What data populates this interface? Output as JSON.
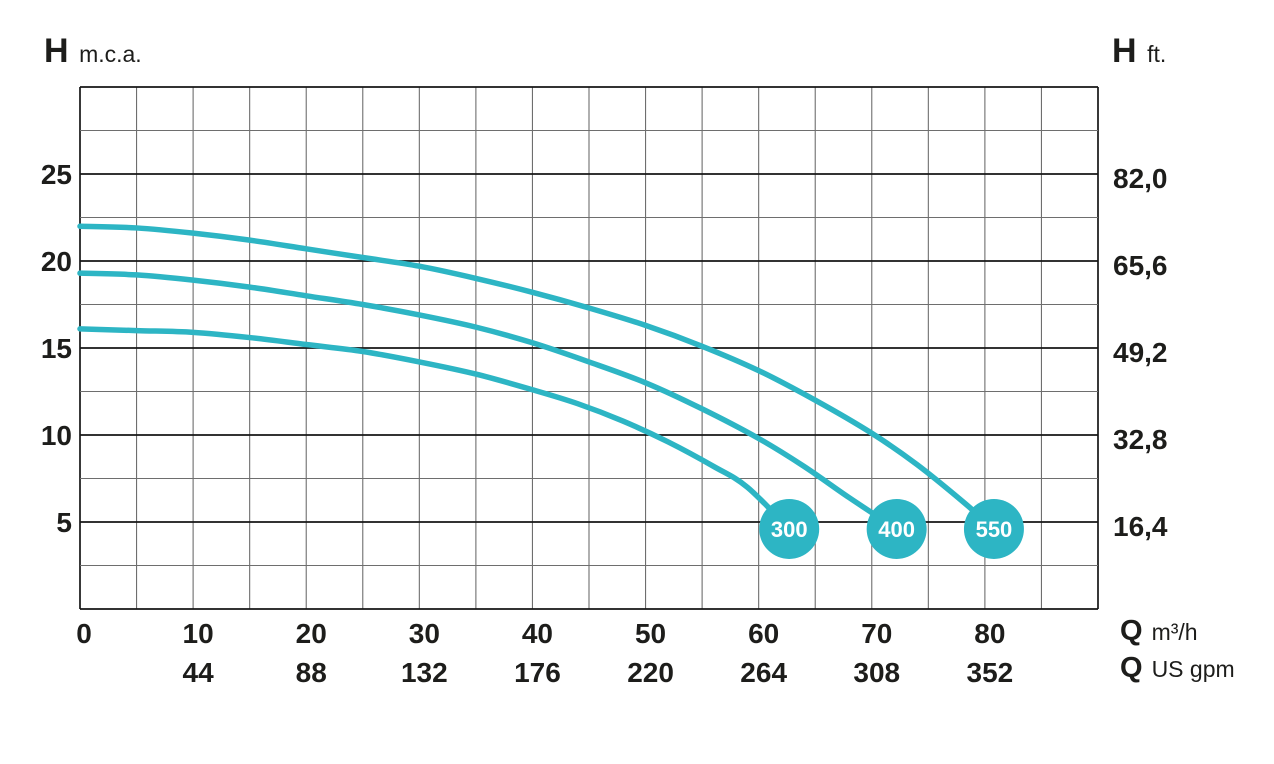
{
  "header_left": {
    "symbol": "H",
    "unit": "m.c.a."
  },
  "header_right": {
    "symbol": "H",
    "unit": "ft."
  },
  "flow_unit_primary": {
    "symbol": "Q",
    "unit": "m³/h"
  },
  "flow_unit_secondary": {
    "symbol": "Q",
    "unit": "US gpm"
  },
  "chart_data": {
    "type": "line",
    "title": "",
    "x_axis": {
      "unit": "m³/h",
      "min": 0,
      "max": 90,
      "grid_step": 5,
      "ticks": [
        0,
        10,
        20,
        30,
        40,
        50,
        60,
        70,
        80
      ]
    },
    "x_axis_secondary": {
      "unit": "US gpm",
      "ticks": [
        "44",
        "88",
        "132",
        "176",
        "220",
        "264",
        "308",
        "352"
      ],
      "tick_positions": [
        10,
        20,
        30,
        40,
        50,
        60,
        70,
        80
      ]
    },
    "y_axis": {
      "unit": "m.c.a.",
      "min": 0,
      "max": 30,
      "grid_step": 2.5,
      "ticks": [
        5,
        10,
        15,
        20,
        25
      ],
      "major_step": 5
    },
    "y_axis_secondary": {
      "unit": "ft.",
      "ticks": [
        "16,4",
        "32,8",
        "49,2",
        "65,6",
        "82,0"
      ],
      "tick_positions": [
        5,
        10,
        15,
        20,
        25
      ]
    },
    "grid": true,
    "legend_position": "on-curve-markers",
    "series": [
      {
        "name": "300",
        "points": [
          [
            0,
            16.1
          ],
          [
            5,
            16.0
          ],
          [
            10,
            15.9
          ],
          [
            15,
            15.6
          ],
          [
            20,
            15.2
          ],
          [
            25,
            14.8
          ],
          [
            30,
            14.2
          ],
          [
            35,
            13.5
          ],
          [
            40,
            12.6
          ],
          [
            44,
            11.8
          ],
          [
            48,
            10.8
          ],
          [
            52,
            9.6
          ],
          [
            56,
            8.2
          ],
          [
            59,
            7.0
          ],
          [
            62.7,
            4.6
          ]
        ],
        "marker": {
          "label": "300",
          "q": 62.7,
          "h": 4.6
        }
      },
      {
        "name": "400",
        "points": [
          [
            0,
            19.3
          ],
          [
            5,
            19.2
          ],
          [
            10,
            18.9
          ],
          [
            15,
            18.5
          ],
          [
            20,
            18.0
          ],
          [
            25,
            17.5
          ],
          [
            30,
            16.9
          ],
          [
            35,
            16.2
          ],
          [
            40,
            15.3
          ],
          [
            45,
            14.2
          ],
          [
            50,
            13.0
          ],
          [
            55,
            11.5
          ],
          [
            60,
            9.8
          ],
          [
            64,
            8.2
          ],
          [
            68,
            6.4
          ],
          [
            72.2,
            4.6
          ]
        ],
        "marker": {
          "label": "400",
          "q": 72.2,
          "h": 4.6
        }
      },
      {
        "name": "550",
        "points": [
          [
            0,
            22.0
          ],
          [
            5,
            21.9
          ],
          [
            10,
            21.6
          ],
          [
            15,
            21.2
          ],
          [
            20,
            20.7
          ],
          [
            25,
            20.2
          ],
          [
            30,
            19.7
          ],
          [
            35,
            19.0
          ],
          [
            40,
            18.2
          ],
          [
            45,
            17.3
          ],
          [
            50,
            16.3
          ],
          [
            55,
            15.1
          ],
          [
            60,
            13.7
          ],
          [
            65,
            12.0
          ],
          [
            70,
            10.1
          ],
          [
            74,
            8.3
          ],
          [
            78,
            6.2
          ],
          [
            80.8,
            4.6
          ]
        ],
        "marker": {
          "label": "550",
          "q": 80.8,
          "h": 4.6
        }
      }
    ],
    "colors": {
      "curve": "#2db5c4",
      "grid_minor": "#6e6e6e",
      "grid_major": "#161616",
      "label": "#1d1d1b",
      "marker_fill": "#2db5c4",
      "marker_text": "#ffffff",
      "background": "#ffffff"
    }
  }
}
